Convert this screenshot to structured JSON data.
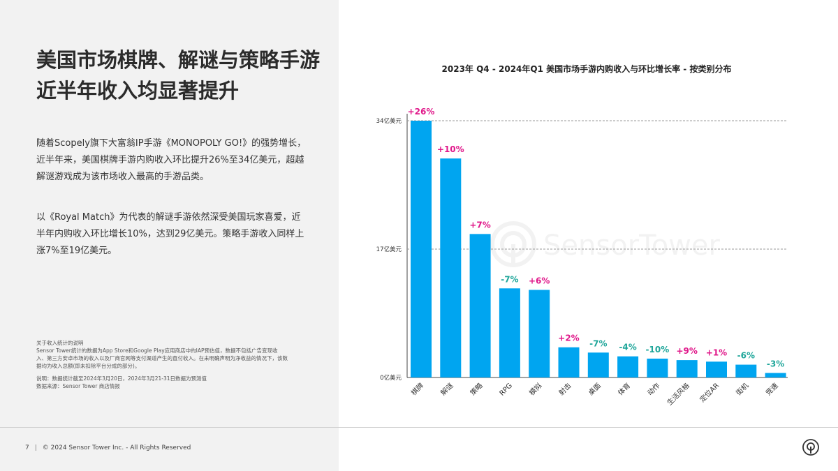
{
  "headline": "美国市场棋牌、解谜与策略手游近半年收入均显著提升",
  "paragraphs": [
    "随着Scopely旗下大富翁IP手游《MONOPOLY GO!》的强势增长，近半年来，美国棋牌手游内购收入环比提升26%至34亿美元，超越解谜游戏成为该市场收入最高的手游品类。",
    "以《Royal Match》为代表的解谜手游依然深受美国玩家喜爱，近半年内购收入环比增长10%，达到29亿美元。策略手游收入同样上涨7%至19亿美元。"
  ],
  "notes": {
    "heading": "关于收入统计的说明",
    "body": "Sensor Tower统计的数据为App Store和Google Play应用商店中的IAP预估值，数据不包括广告变现收入、第三方安卓市场的收入以及厂商官网等支付渠道产生的直付收入。在未明确声明为净收益的情况下，该数据均为收入总额(即未扣除平台分成的部分)。",
    "note": "说明：数据统计截至2024年3月20日，2024年3月21-31日数据为预测值",
    "source": "数据来源：Sensor Tower 商店情报"
  },
  "footer": {
    "page_number": "7",
    "copyright": "© 2024 Sensor Tower Inc. - All Rights Reserved"
  },
  "watermark_text": "SensorTower",
  "colors": {
    "bar": "#00a5f0",
    "positive": "#e0188a",
    "negative": "#1fa69a",
    "gridline": "#9a9a9a",
    "left_panel": "#f2f2f2"
  },
  "chart_data": {
    "type": "bar",
    "title": "2023年 Q4 - 2024年Q1 美国市场手游内购收入与环比增长率 - 按类别分布",
    "categories": [
      "棋牌",
      "解谜",
      "策略",
      "RPG",
      "模拟",
      "射击",
      "桌面",
      "体育",
      "动作",
      "生活风格",
      "定位AR",
      "街机",
      "竞速"
    ],
    "values": [
      34,
      29,
      19,
      11.8,
      11.6,
      4.0,
      3.3,
      2.8,
      2.5,
      2.3,
      2.1,
      1.7,
      0.6
    ],
    "growth_labels": [
      "+26%",
      "+10%",
      "+7%",
      "-7%",
      "+6%",
      "+2%",
      "-7%",
      "-4%",
      "-10%",
      "+9%",
      "+1%",
      "-6%",
      "-3%"
    ],
    "y_ticks": [
      {
        "value": 0,
        "label": "0亿美元"
      },
      {
        "value": 17,
        "label": "17亿美元"
      },
      {
        "value": 34,
        "label": "34亿美元"
      }
    ],
    "ylim": [
      0,
      34
    ],
    "gridlines": [
      17,
      34
    ],
    "xlabel": "",
    "ylabel": ""
  }
}
